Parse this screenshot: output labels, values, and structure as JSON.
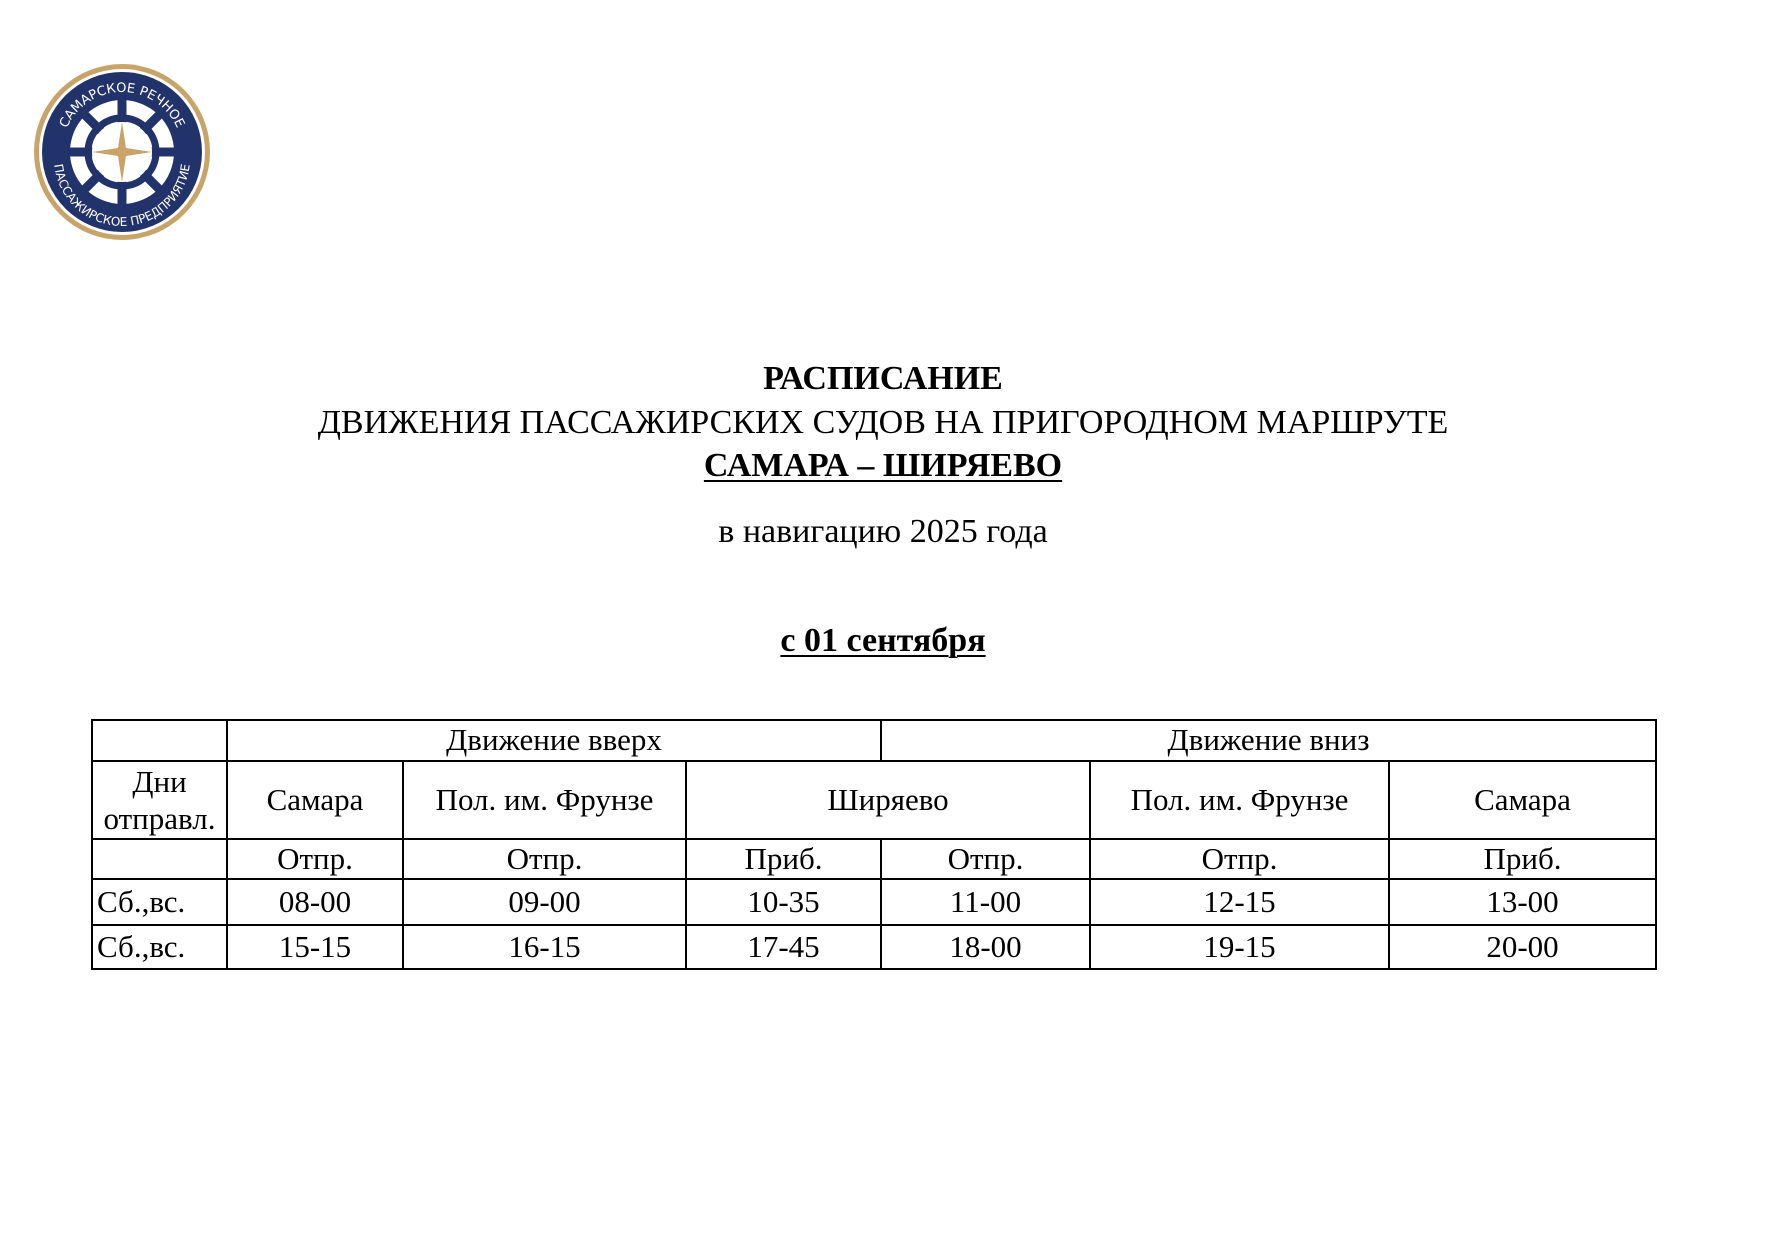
{
  "logo": {
    "text_top": "САМАРСКОЕ РЕЧНОЕ",
    "text_bottom": "ПАССАЖИРСКОЕ ПРЕДПРИЯТИЕ",
    "colors": {
      "navy": "#22336b",
      "gold": "#c9a46a"
    }
  },
  "header": {
    "title": "РАСПИСАНИЕ",
    "subtitle": "ДВИЖЕНИЯ ПАССАЖИРСКИХ СУДОВ НА ПРИГОРОДНОМ МАРШРУТЕ",
    "route": "САМАРА – ШИРЯЕВО",
    "season": "в навигацию 2025 года",
    "effective": "с 01 сентября"
  },
  "table": {
    "direction_up": "Движение вверх",
    "direction_down": "Движение вниз",
    "days_header": "Дни отправл.",
    "stations": [
      "Самара",
      "Пол. им. Фрунзе",
      "Ширяево",
      "Пол. им. Фрунзе",
      "Самара"
    ],
    "subheaders": [
      "Отпр.",
      "Отпр.",
      "Приб.",
      "Отпр.",
      "Отпр.",
      "Приб."
    ],
    "rows": [
      {
        "days": "Сб.,вс.",
        "times": [
          "08-00",
          "09-00",
          "10-35",
          "11-00",
          "12-15",
          "13-00"
        ]
      },
      {
        "days": "Сб.,вс.",
        "times": [
          "15-15",
          "16-15",
          "17-45",
          "18-00",
          "19-15",
          "20-00"
        ]
      }
    ]
  }
}
